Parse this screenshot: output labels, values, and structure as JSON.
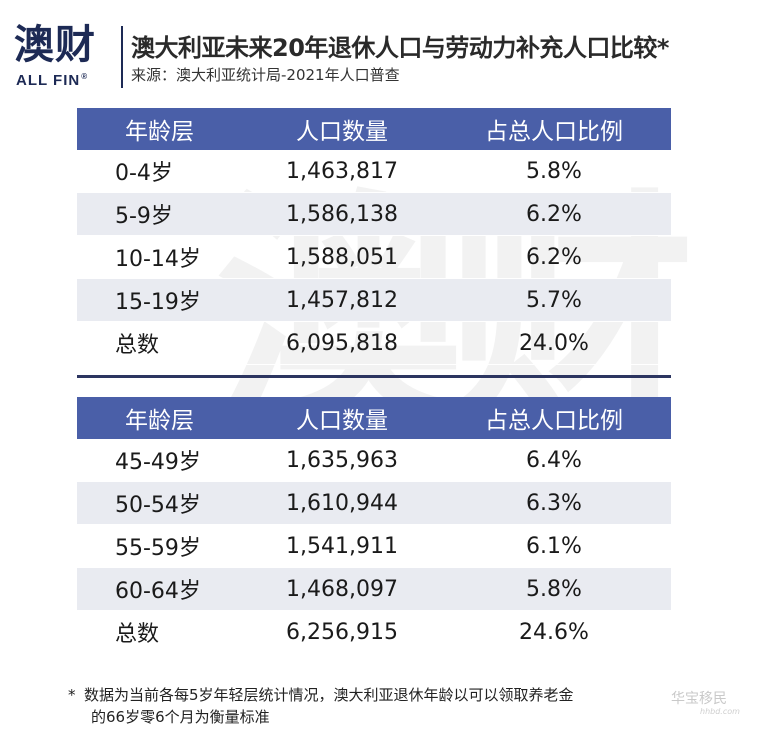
{
  "logo": {
    "main": "澳财",
    "sub": "ALL FIN",
    "reg": "®"
  },
  "title": "澳大利亚未来20年退休人口与劳动力补充人口比较*",
  "source": "来源：澳大利亚统计局-2021年人口普查",
  "watermark": "澳财",
  "tables": [
    {
      "headers": [
        "年龄层",
        "人口数量",
        "占总人口比例"
      ],
      "rows": [
        [
          "0-4岁",
          "1,463,817",
          "5.8%"
        ],
        [
          "5-9岁",
          "1,586,138",
          "6.2%"
        ],
        [
          "10-14岁",
          "1,588,051",
          "6.2%"
        ],
        [
          "15-19岁",
          "1,457,812",
          "5.7%"
        ],
        [
          "总数",
          "6,095,818",
          "24.0%"
        ]
      ]
    },
    {
      "headers": [
        "年龄层",
        "人口数量",
        "占总人口比例"
      ],
      "rows": [
        [
          "45-49岁",
          "1,635,963",
          "6.4%"
        ],
        [
          "50-54岁",
          "1,610,944",
          "6.3%"
        ],
        [
          "55-59岁",
          "1,541,911",
          "6.1%"
        ],
        [
          "60-64岁",
          "1,468,097",
          "5.8%"
        ],
        [
          "总数",
          "6,256,915",
          "24.6%"
        ]
      ]
    }
  ],
  "footnote": {
    "star": "*",
    "line1": "数据为当前各每5岁年轻层统计情况，澳大利亚退休年龄以可以领取养老金",
    "line2": "的66岁零6个月为衡量标准"
  },
  "corner_mark": {
    "main": "华宝移民",
    "sub": "hhbd.com"
  }
}
